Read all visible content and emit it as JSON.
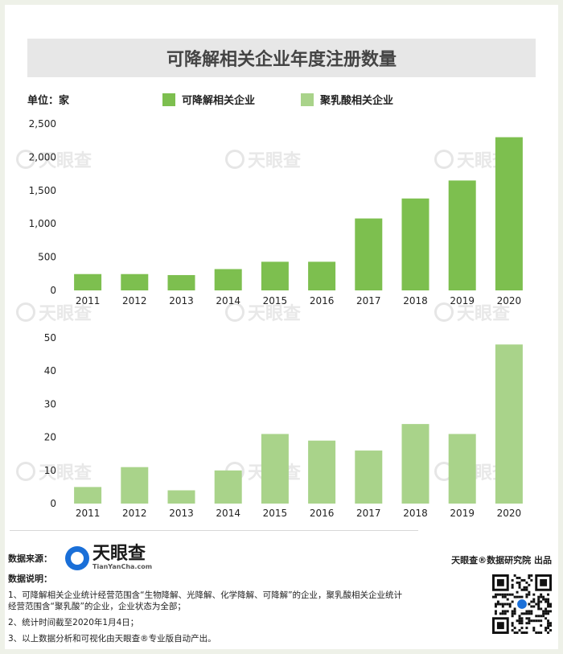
{
  "title": "可降解相关企业年度注册数量",
  "unit_label": "单位：家",
  "legend": [
    {
      "label": "可降解相关企业",
      "color": "#7dbf4f"
    },
    {
      "label": "聚乳酸相关企业",
      "color": "#a9d38a"
    }
  ],
  "watermark": {
    "main": "天眼查",
    "sub": "TianYanCha.com"
  },
  "chart_data": [
    {
      "type": "bar",
      "categories": [
        "2011",
        "2012",
        "2013",
        "2014",
        "2015",
        "2016",
        "2017",
        "2018",
        "2019",
        "2020"
      ],
      "series": [
        {
          "name": "可降解相关企业",
          "values": [
            245,
            245,
            230,
            320,
            430,
            430,
            1080,
            1380,
            1650,
            2300
          ]
        }
      ],
      "ylim": [
        0,
        2500
      ],
      "yticks": [
        0,
        500,
        1000,
        1500,
        2000,
        2500
      ],
      "ytick_labels": [
        "0",
        "500",
        "1,000",
        "1,500",
        "2,000",
        "2,500"
      ],
      "color": "#7dbf4f"
    },
    {
      "type": "bar",
      "categories": [
        "2011",
        "2012",
        "2013",
        "2014",
        "2015",
        "2016",
        "2017",
        "2018",
        "2019",
        "2020"
      ],
      "series": [
        {
          "name": "聚乳酸相关企业",
          "values": [
            5,
            11,
            4,
            10,
            21,
            19,
            16,
            24,
            21,
            48
          ]
        }
      ],
      "ylim": [
        0,
        50
      ],
      "yticks": [
        0,
        10,
        20,
        30,
        40,
        50
      ],
      "ytick_labels": [
        "0",
        "10",
        "20",
        "30",
        "40",
        "50"
      ],
      "color": "#a9d38a"
    }
  ],
  "footer": {
    "source_label": "数据来源：",
    "source_logo_main": "天眼查",
    "source_logo_sub": "TianYanCha.com",
    "notes_title": "数据说明：",
    "notes": [
      "1、可降解相关企业统计经营范围含“生物降解、光降解、化学降解、可降解”的企业，聚乳酸相关企业统计经营范围含“聚乳酸”的企业，企业状态为全部；",
      "2、统计时间截至2020年1月4日；",
      "3、以上数据分析和可视化由天眼查®专业版自动产出。"
    ],
    "publisher": "天眼查®数据研究院 出品"
  }
}
